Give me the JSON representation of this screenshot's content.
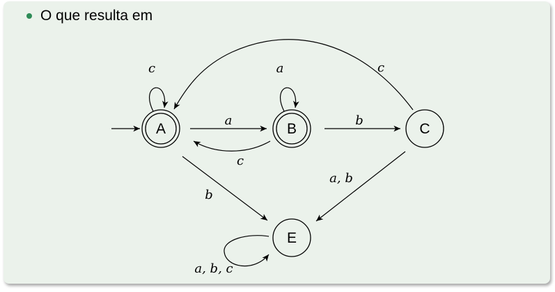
{
  "slide": {
    "bullet_text": "O que resulta em"
  },
  "automaton": {
    "states": [
      {
        "id": "A",
        "label": "A",
        "accepting": true,
        "initial": true
      },
      {
        "id": "B",
        "label": "B",
        "accepting": true,
        "initial": false
      },
      {
        "id": "C",
        "label": "C",
        "accepting": false,
        "initial": false
      },
      {
        "id": "E",
        "label": "E",
        "accepting": false,
        "initial": false
      }
    ],
    "transitions": [
      {
        "from": "A",
        "to": "A",
        "label": "c"
      },
      {
        "from": "A",
        "to": "B",
        "label": "a"
      },
      {
        "from": "B",
        "to": "A",
        "label": "c"
      },
      {
        "from": "B",
        "to": "B",
        "label": "a"
      },
      {
        "from": "B",
        "to": "C",
        "label": "b"
      },
      {
        "from": "C",
        "to": "A",
        "label": "c"
      },
      {
        "from": "C",
        "to": "E",
        "label": "a, b"
      },
      {
        "from": "A",
        "to": "E",
        "label": "b"
      },
      {
        "from": "E",
        "to": "E",
        "label": "a, b, c"
      }
    ]
  },
  "colors": {
    "panel_background": "#ebf2eb",
    "bullet": "#2e8b57",
    "stroke": "#000000"
  }
}
